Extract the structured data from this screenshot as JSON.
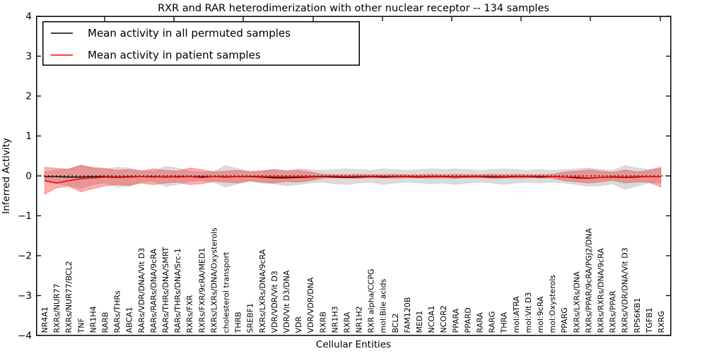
{
  "title": "RXR and RAR heterodimerization with other nuclear receptor -- 134 samples",
  "legend": {
    "entries": [
      {
        "label": "Mean activity in all permuted samples",
        "color": "#000000"
      },
      {
        "label": "Mean activity in patient samples",
        "color": "#ff0000"
      }
    ],
    "position": "upper left"
  },
  "colors": {
    "permuted_line": "#000000",
    "permuted_band": "rgba(0,0,0,0.14)",
    "patient_line": "#ff0000",
    "patient_band": "rgba(255,0,0,0.32)",
    "zero_line": "#000000"
  },
  "chart_data": {
    "type": "line",
    "title": "RXR and RAR heterodimerization with other nuclear receptor -- 134 samples",
    "xlabel": "Cellular Entities",
    "ylabel": "Inferred Activity",
    "ylim": [
      -4,
      4
    ],
    "yticks": [
      4,
      3,
      2,
      1,
      0,
      -1,
      -2,
      -3,
      -4
    ],
    "grid": false,
    "legend_position": "upper left",
    "zero_reference_line": 0,
    "categories": [
      "NR4A1",
      "RXRs/NUR77",
      "RXRs/NUR77/BCL2",
      "TNF",
      "NR1H4",
      "RARB",
      "RARs/THRs",
      "ABCA1",
      "RARs/VDR/DNA/Vit D3",
      "RARs/RARs/DNA/9cRA",
      "RARs/THRs/DNA/SMRT",
      "RARs/THRs/DNA/Src-1",
      "RXRs/FXR",
      "RXRs/FXR/9cRA/MED1",
      "RXRs/LXRs/DNA/Oxysterols",
      "cholesterol transport",
      "THRB",
      "SREBF1",
      "RXRs/LXRs/DNA/9cRA",
      "VDR/VDR/Vit D3",
      "VDR/Vit D3/DNA",
      "VDR",
      "VDR/VDR/DNA",
      "RXRB",
      "NR1H3",
      "RXRA",
      "NR1H2",
      "RXR alpha/CCPG",
      "mol:Bile acids",
      "BCL2",
      "FAM120B",
      "MED1",
      "NCOA1",
      "NCOR2",
      "PPARA",
      "PPARD",
      "RARA",
      "RARG",
      "THRA",
      "mol:ATRA",
      "mol:Vit D3",
      "mol:9cRA",
      "mol:Oxysterols",
      "PPARG",
      "RXRs/LXRs/DNA",
      "RXRs/PPAR/9cRA/PGJ2/DNA",
      "RXRs/RXRs/DNA/9cRA",
      "RXRs/PPAR",
      "RXRs/VDR/DNA/Vit D3",
      "RPS6KB1",
      "TGFB1",
      "RXRG"
    ],
    "series": [
      {
        "name": "Mean activity in all permuted samples",
        "role": "permuted_mean",
        "color": "#000000",
        "values": [
          -0.02,
          -0.02,
          -0.03,
          -0.03,
          -0.02,
          -0.02,
          -0.03,
          -0.02,
          -0.02,
          -0.02,
          -0.03,
          -0.02,
          -0.02,
          -0.02,
          -0.02,
          -0.03,
          -0.02,
          -0.02,
          -0.03,
          -0.05,
          -0.05,
          -0.04,
          -0.03,
          -0.02,
          -0.03,
          -0.04,
          -0.03,
          -0.02,
          -0.03,
          -0.02,
          -0.02,
          -0.03,
          -0.02,
          -0.02,
          -0.03,
          -0.02,
          -0.02,
          -0.03,
          -0.03,
          -0.02,
          -0.02,
          -0.03,
          -0.02,
          -0.03,
          -0.05,
          -0.06,
          -0.04,
          -0.03,
          -0.04,
          -0.03,
          -0.02,
          -0.02
        ]
      },
      {
        "name": "Permuted band upper",
        "role": "permuted_band_upper",
        "color": "rgba(0,0,0,0.14)",
        "values": [
          0.1,
          0.15,
          0.18,
          0.28,
          0.2,
          0.16,
          0.22,
          0.2,
          0.14,
          0.12,
          0.24,
          0.2,
          0.12,
          0.1,
          0.12,
          0.26,
          0.18,
          0.12,
          0.14,
          0.16,
          0.14,
          0.18,
          0.16,
          0.14,
          0.16,
          0.18,
          0.16,
          0.14,
          0.18,
          0.16,
          0.14,
          0.16,
          0.18,
          0.16,
          0.18,
          0.16,
          0.14,
          0.16,
          0.18,
          0.16,
          0.14,
          0.16,
          0.14,
          0.16,
          0.18,
          0.2,
          0.16,
          0.14,
          0.26,
          0.2,
          0.16,
          0.23
        ]
      },
      {
        "name": "Permuted band lower",
        "role": "permuted_band_lower",
        "color": "rgba(0,0,0,0.14)",
        "values": [
          -0.14,
          -0.2,
          -0.25,
          -0.32,
          -0.22,
          -0.18,
          -0.28,
          -0.26,
          -0.16,
          -0.14,
          -0.26,
          -0.22,
          -0.14,
          -0.12,
          -0.16,
          -0.28,
          -0.2,
          -0.14,
          -0.18,
          -0.2,
          -0.25,
          -0.22,
          -0.18,
          -0.16,
          -0.2,
          -0.22,
          -0.18,
          -0.16,
          -0.22,
          -0.18,
          -0.16,
          -0.18,
          -0.2,
          -0.18,
          -0.22,
          -0.18,
          -0.16,
          -0.18,
          -0.22,
          -0.18,
          -0.16,
          -0.18,
          -0.16,
          -0.18,
          -0.22,
          -0.26,
          -0.25,
          -0.2,
          -0.34,
          -0.26,
          -0.18,
          -0.18
        ]
      },
      {
        "name": "Mean activity in patient samples",
        "role": "patient_mean",
        "color": "#ff0000",
        "values": [
          -0.12,
          -0.18,
          -0.12,
          -0.07,
          -0.05,
          -0.03,
          -0.04,
          -0.03,
          -0.02,
          -0.03,
          -0.02,
          -0.03,
          -0.02,
          -0.04,
          -0.02,
          -0.02,
          -0.02,
          -0.01,
          -0.02,
          -0.02,
          -0.02,
          -0.02,
          -0.02,
          -0.01,
          -0.01,
          -0.02,
          -0.01,
          -0.01,
          -0.01,
          -0.01,
          -0.01,
          -0.02,
          -0.01,
          -0.01,
          -0.02,
          -0.01,
          -0.01,
          -0.01,
          -0.02,
          -0.01,
          -0.01,
          -0.01,
          -0.02,
          -0.03,
          -0.03,
          -0.05,
          -0.04,
          -0.02,
          -0.03,
          -0.02,
          -0.02,
          -0.02
        ]
      },
      {
        "name": "Patient band upper",
        "role": "patient_band_upper",
        "color": "rgba(255,0,0,0.32)",
        "values": [
          0.22,
          0.19,
          0.17,
          0.26,
          0.21,
          0.19,
          0.14,
          0.16,
          0.12,
          0.18,
          0.14,
          0.12,
          0.2,
          0.16,
          0.1,
          0.12,
          0.14,
          0.1,
          0.12,
          0.16,
          0.12,
          0.14,
          0.1,
          0.04,
          0.03,
          0.03,
          0.04,
          0.03,
          0.03,
          0.04,
          0.03,
          0.03,
          0.04,
          0.03,
          0.04,
          0.03,
          0.03,
          0.04,
          0.03,
          0.04,
          0.03,
          0.03,
          0.04,
          0.1,
          0.12,
          0.15,
          0.12,
          0.09,
          0.15,
          0.1,
          0.14,
          0.2
        ]
      },
      {
        "name": "Patient band lower",
        "role": "patient_band_lower",
        "color": "rgba(255,0,0,0.32)",
        "values": [
          -0.46,
          -0.3,
          -0.26,
          -0.4,
          -0.32,
          -0.25,
          -0.22,
          -0.24,
          -0.18,
          -0.22,
          -0.18,
          -0.16,
          -0.22,
          -0.2,
          -0.14,
          -0.16,
          -0.18,
          -0.12,
          -0.16,
          -0.18,
          -0.14,
          -0.16,
          -0.12,
          -0.06,
          -0.05,
          -0.05,
          -0.06,
          -0.05,
          -0.05,
          -0.06,
          -0.05,
          -0.05,
          -0.06,
          -0.05,
          -0.06,
          -0.05,
          -0.05,
          -0.06,
          -0.05,
          -0.06,
          -0.05,
          -0.05,
          -0.06,
          -0.12,
          -0.15,
          -0.18,
          -0.15,
          -0.11,
          -0.18,
          -0.15,
          -0.16,
          -0.28
        ]
      }
    ]
  }
}
